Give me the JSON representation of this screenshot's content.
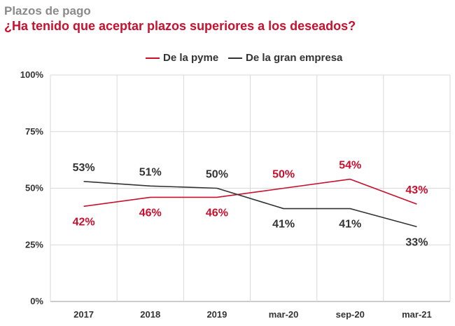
{
  "chart_data": {
    "type": "line",
    "title": "Plazos de pago",
    "subtitle": "¿Ha tenido que aceptar plazos superiores a los deseados?",
    "categories": [
      "2017",
      "2018",
      "2019",
      "mar-20",
      "sep-20",
      "mar-21"
    ],
    "series": [
      {
        "name": "De la pyme",
        "color": "#c8102e",
        "values": [
          42,
          46,
          46,
          50,
          54,
          43
        ],
        "labels": [
          "42%",
          "46%",
          "46%",
          "50%",
          "54%",
          "43%"
        ],
        "label_side": [
          "below",
          "below",
          "below",
          "above",
          "above",
          "above"
        ]
      },
      {
        "name": "De la gran empresa",
        "color": "#333333",
        "values": [
          53,
          51,
          50,
          41,
          41,
          33
        ],
        "labels": [
          "53%",
          "51%",
          "50%",
          "41%",
          "41%",
          "33%"
        ],
        "label_side": [
          "above",
          "above",
          "above",
          "below",
          "below",
          "below"
        ]
      }
    ],
    "yticks": [
      "100%",
      "75%",
      "50%",
      "25%",
      "0%"
    ],
    "ytick_values": [
      100,
      75,
      50,
      25,
      0
    ],
    "ylim": [
      0,
      100
    ],
    "grid": true,
    "legend_position": "top-center"
  }
}
